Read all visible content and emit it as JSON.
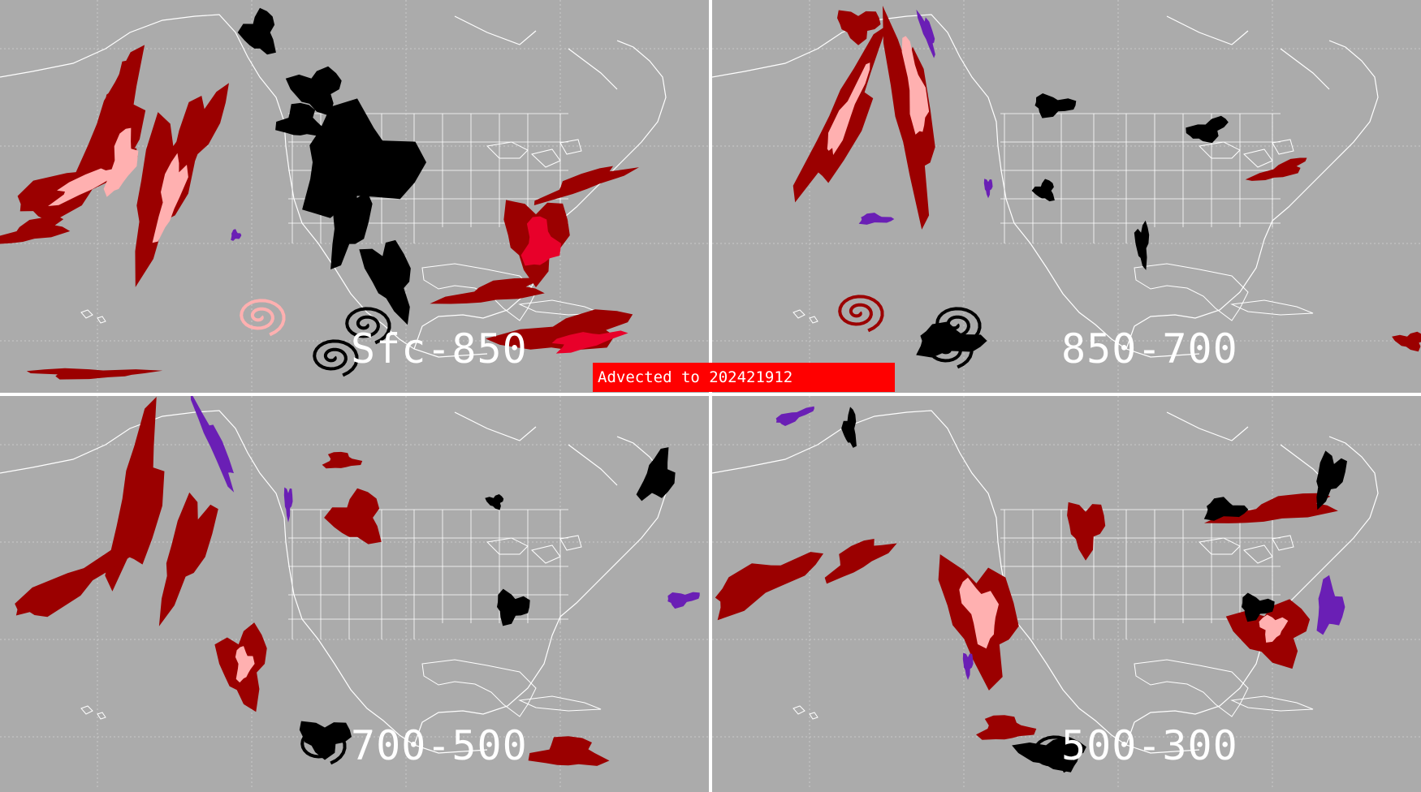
{
  "colors": {
    "background": "#ababab",
    "divider": "#ffffff",
    "coast": "#ffffff",
    "dark_red": "#9b0000",
    "pink": "#ffb0b0",
    "bright_red": "#e8002a",
    "black": "#000000",
    "purple": "#6a1fb5",
    "banner": "#ff0000"
  },
  "panels": [
    {
      "label": "Sfc-850"
    },
    {
      "label": "850-700"
    },
    {
      "label": "700-500"
    },
    {
      "label": "500-300"
    }
  ],
  "banner": {
    "text": "Advected to  202421912"
  }
}
